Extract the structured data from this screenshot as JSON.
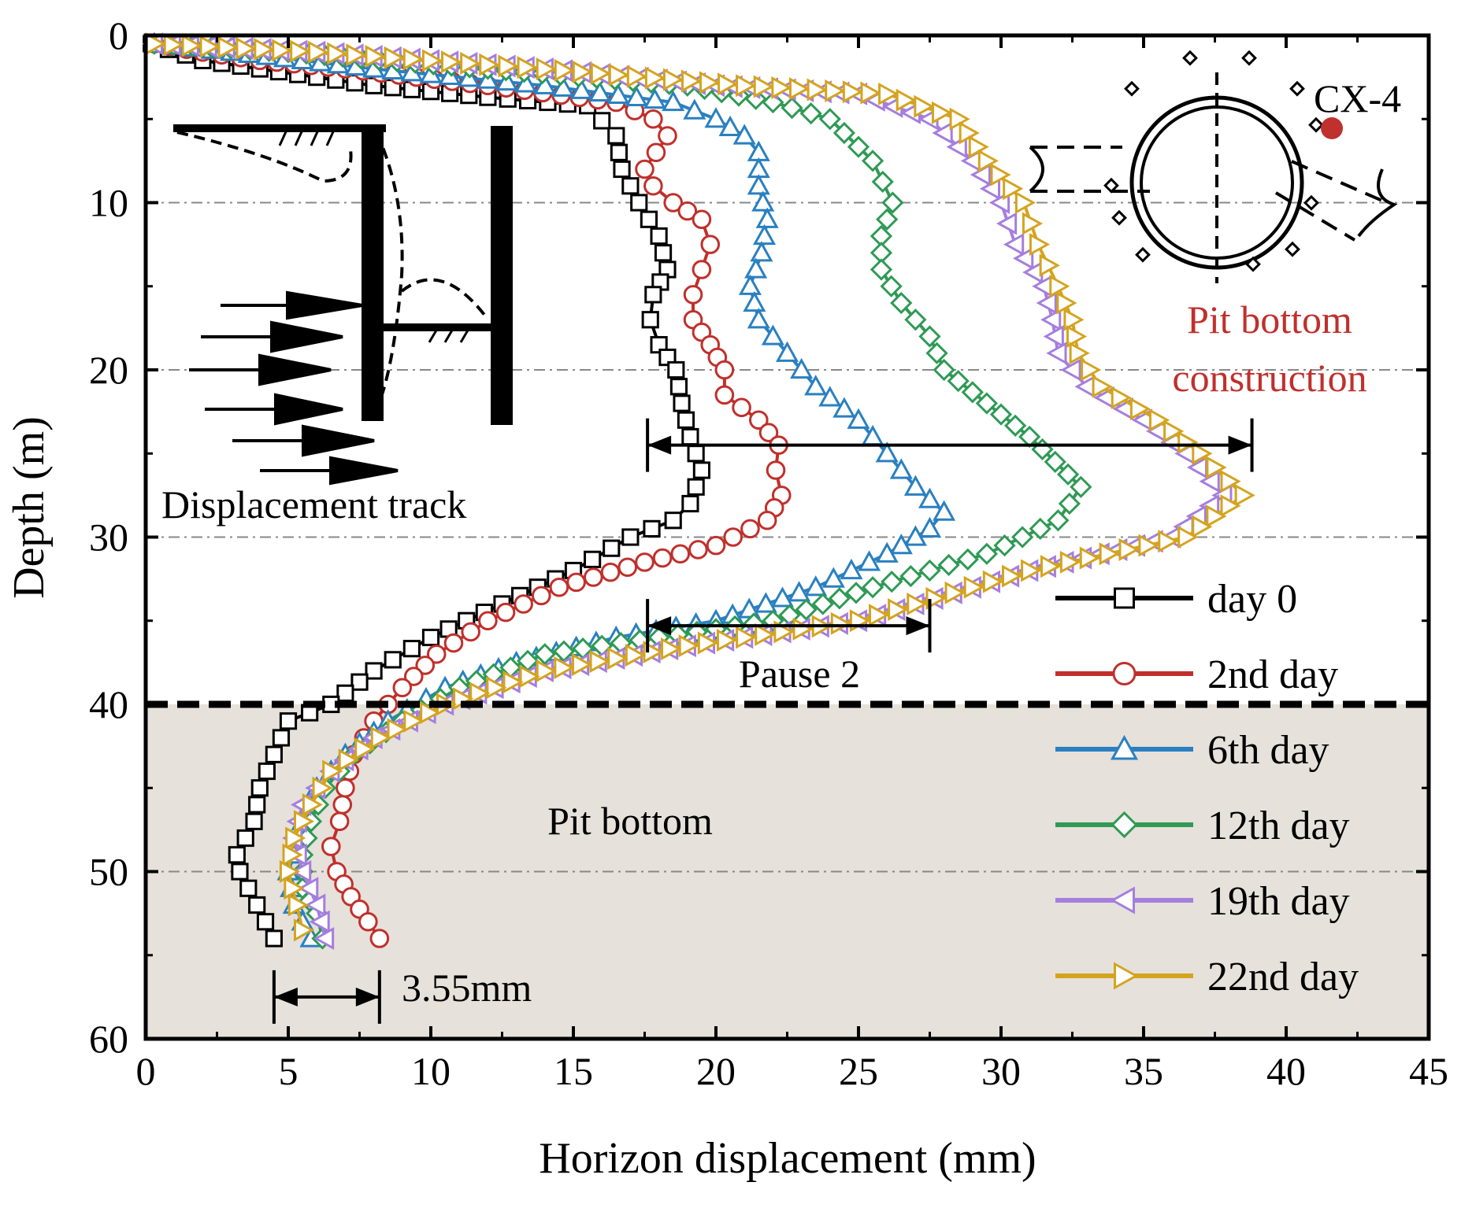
{
  "chart_data": {
    "type": "line",
    "title": "",
    "xlabel": "Horizon displacement (mm)",
    "ylabel": "Depth (m)",
    "xlim": [
      0,
      45
    ],
    "ylim": [
      60,
      0
    ],
    "y_inverted": true,
    "xticks": [
      0,
      5,
      10,
      15,
      20,
      25,
      30,
      35,
      40,
      45
    ],
    "yticks": [
      0,
      10,
      20,
      30,
      40,
      50,
      60
    ],
    "grid_y": [
      10,
      20,
      30,
      50
    ],
    "pit_bottom_depth": 40,
    "legend_position": "bottom-right",
    "series": [
      {
        "name": "day 0",
        "color": "#000000",
        "marker": "square",
        "x": [
          0.2,
          2,
          4,
          8,
          12,
          15.5,
          16.5,
          16.7,
          17.3,
          18,
          18.3,
          17.8,
          17.7,
          18,
          18.6,
          18.8,
          19.1,
          19.5,
          19.3,
          19.1,
          18.5,
          17,
          15,
          12.5,
          10,
          8,
          6.5,
          5,
          4.5,
          4,
          3.8,
          3.5,
          3.2,
          3.3,
          3.6,
          3.9,
          4.5
        ],
        "y": [
          0.5,
          1.5,
          2,
          3,
          3.7,
          4.2,
          6,
          8,
          10,
          12,
          14,
          15.5,
          17,
          18.5,
          20,
          22,
          24,
          26,
          27,
          28,
          29,
          30,
          32,
          34,
          36,
          38,
          40,
          41,
          43,
          45,
          47,
          48,
          49,
          50,
          51,
          52,
          54
        ]
      },
      {
        "name": "2nd day",
        "color": "#c0302c",
        "marker": "circle",
        "x": [
          0.3,
          2,
          4,
          7,
          12,
          16.5,
          17.8,
          18.3,
          17.5,
          17.8,
          18.5,
          19.5,
          19.8,
          19.5,
          19.2,
          19.2,
          19.8,
          20.3,
          20.3,
          21.5,
          22.2,
          22.1,
          22.3,
          21.8,
          20,
          17.5,
          14.5,
          12,
          10.2,
          9,
          8,
          7.3,
          7,
          6.8,
          6.5,
          6.7,
          7.2,
          7.8,
          8.2
        ],
        "y": [
          0.5,
          1,
          1.5,
          2,
          3,
          4,
          5,
          6,
          8,
          9,
          10,
          11,
          12.5,
          14,
          15.5,
          17,
          18.5,
          20,
          21.5,
          23,
          24.5,
          26,
          27.5,
          29,
          30.5,
          31.5,
          33,
          35,
          37,
          39,
          41,
          43,
          45,
          47,
          48.5,
          50,
          51.5,
          53,
          54
        ]
      },
      {
        "name": "6th day",
        "color": "#2a80c0",
        "marker": "triangle-up",
        "x": [
          0.3,
          3,
          8,
          14,
          18.5,
          20,
          21,
          21.5,
          21.5,
          21.8,
          21.6,
          21.2,
          21.5,
          22.5,
          23.5,
          25,
          26,
          27,
          28,
          27.5,
          26,
          23.5,
          20,
          16.5,
          13,
          10.5,
          8.5,
          7,
          6,
          5.5,
          5.2,
          5,
          5.2,
          5.5,
          5.8
        ],
        "y": [
          0.5,
          1,
          2,
          3,
          4,
          5,
          6,
          7,
          9,
          11,
          13,
          15,
          17,
          19,
          21,
          23,
          25,
          27,
          28.5,
          29.5,
          31,
          33,
          35,
          36,
          37.5,
          39,
          41,
          43,
          45,
          47,
          49,
          50,
          52,
          53,
          54
        ]
      },
      {
        "name": "12th day",
        "color": "#2e9a55",
        "marker": "diamond",
        "x": [
          0.3,
          5,
          12,
          19,
          22,
          24,
          25.5,
          26.2,
          25.8,
          25.8,
          26.5,
          27.5,
          28,
          29.5,
          31,
          32.8,
          32,
          29.5,
          25.5,
          22,
          18,
          14,
          11,
          9,
          7.3,
          6.3,
          5.8,
          5.5,
          5.5,
          6,
          6.2
        ],
        "y": [
          0.5,
          1,
          2,
          3,
          4,
          5,
          7.5,
          10,
          12,
          14,
          16,
          18,
          20,
          22,
          24,
          27,
          29,
          31,
          33,
          35,
          36,
          37,
          39,
          41,
          43,
          45,
          47,
          49,
          51,
          52.5,
          54
        ]
      },
      {
        "name": "19th day",
        "color": "#a57ede",
        "marker": "triangle-left",
        "x": [
          0.3,
          6,
          14,
          20,
          25,
          27.5,
          29,
          30,
          30.5,
          31.5,
          31.8,
          32,
          33,
          35,
          36.5,
          37.8,
          36,
          31,
          25,
          19,
          14,
          10.5,
          8,
          6.5,
          5.5,
          5.2,
          5.5,
          6,
          6.3
        ],
        "y": [
          0.5,
          1,
          2,
          3,
          3.5,
          5,
          7.5,
          10,
          12.5,
          15,
          17,
          19,
          21,
          23,
          25,
          27.5,
          30,
          32,
          35,
          36.5,
          38,
          40,
          42,
          44,
          46,
          48,
          50,
          52,
          54
        ]
      },
      {
        "name": "22nd day",
        "color": "#d4a41f",
        "marker": "triangle-right",
        "x": [
          0.3,
          6,
          14,
          21,
          26,
          28.5,
          29.5,
          30.8,
          31.3,
          32,
          32.5,
          32.7,
          33.5,
          35.5,
          37,
          38.5,
          36.5,
          31,
          25,
          19,
          14,
          10.5,
          8.2,
          6.5,
          5.8,
          5.2,
          5,
          5.3,
          5.5
        ],
        "y": [
          0.5,
          1,
          2,
          3,
          3.5,
          5,
          7.5,
          10,
          12.5,
          15,
          17,
          19,
          21,
          23,
          25,
          27.5,
          30,
          32,
          35,
          36.5,
          38,
          40,
          42,
          44,
          46,
          48,
          50,
          52,
          53.5
        ]
      }
    ],
    "annotations": {
      "displacement_track": "Displacement track",
      "pause_2": "Pause 2",
      "pit_bottom": "Pit bottom",
      "pit_bottom_construction_line1": "Pit bottom",
      "pit_bottom_construction_line2": "construction",
      "cx_label": "CX-4",
      "width_label": "3.55mm"
    },
    "dimension_arrows": [
      {
        "x1": 17.6,
        "x2": 38.8,
        "y": 24.5
      },
      {
        "x1": 17.6,
        "x2": 27.5,
        "y": 35.3
      },
      {
        "x1": 4.5,
        "x2": 8.2,
        "y": 57.5
      }
    ],
    "colors": {
      "pit_bottom_fill": "#e6e1da",
      "highlight_text": "#c0302c"
    }
  }
}
